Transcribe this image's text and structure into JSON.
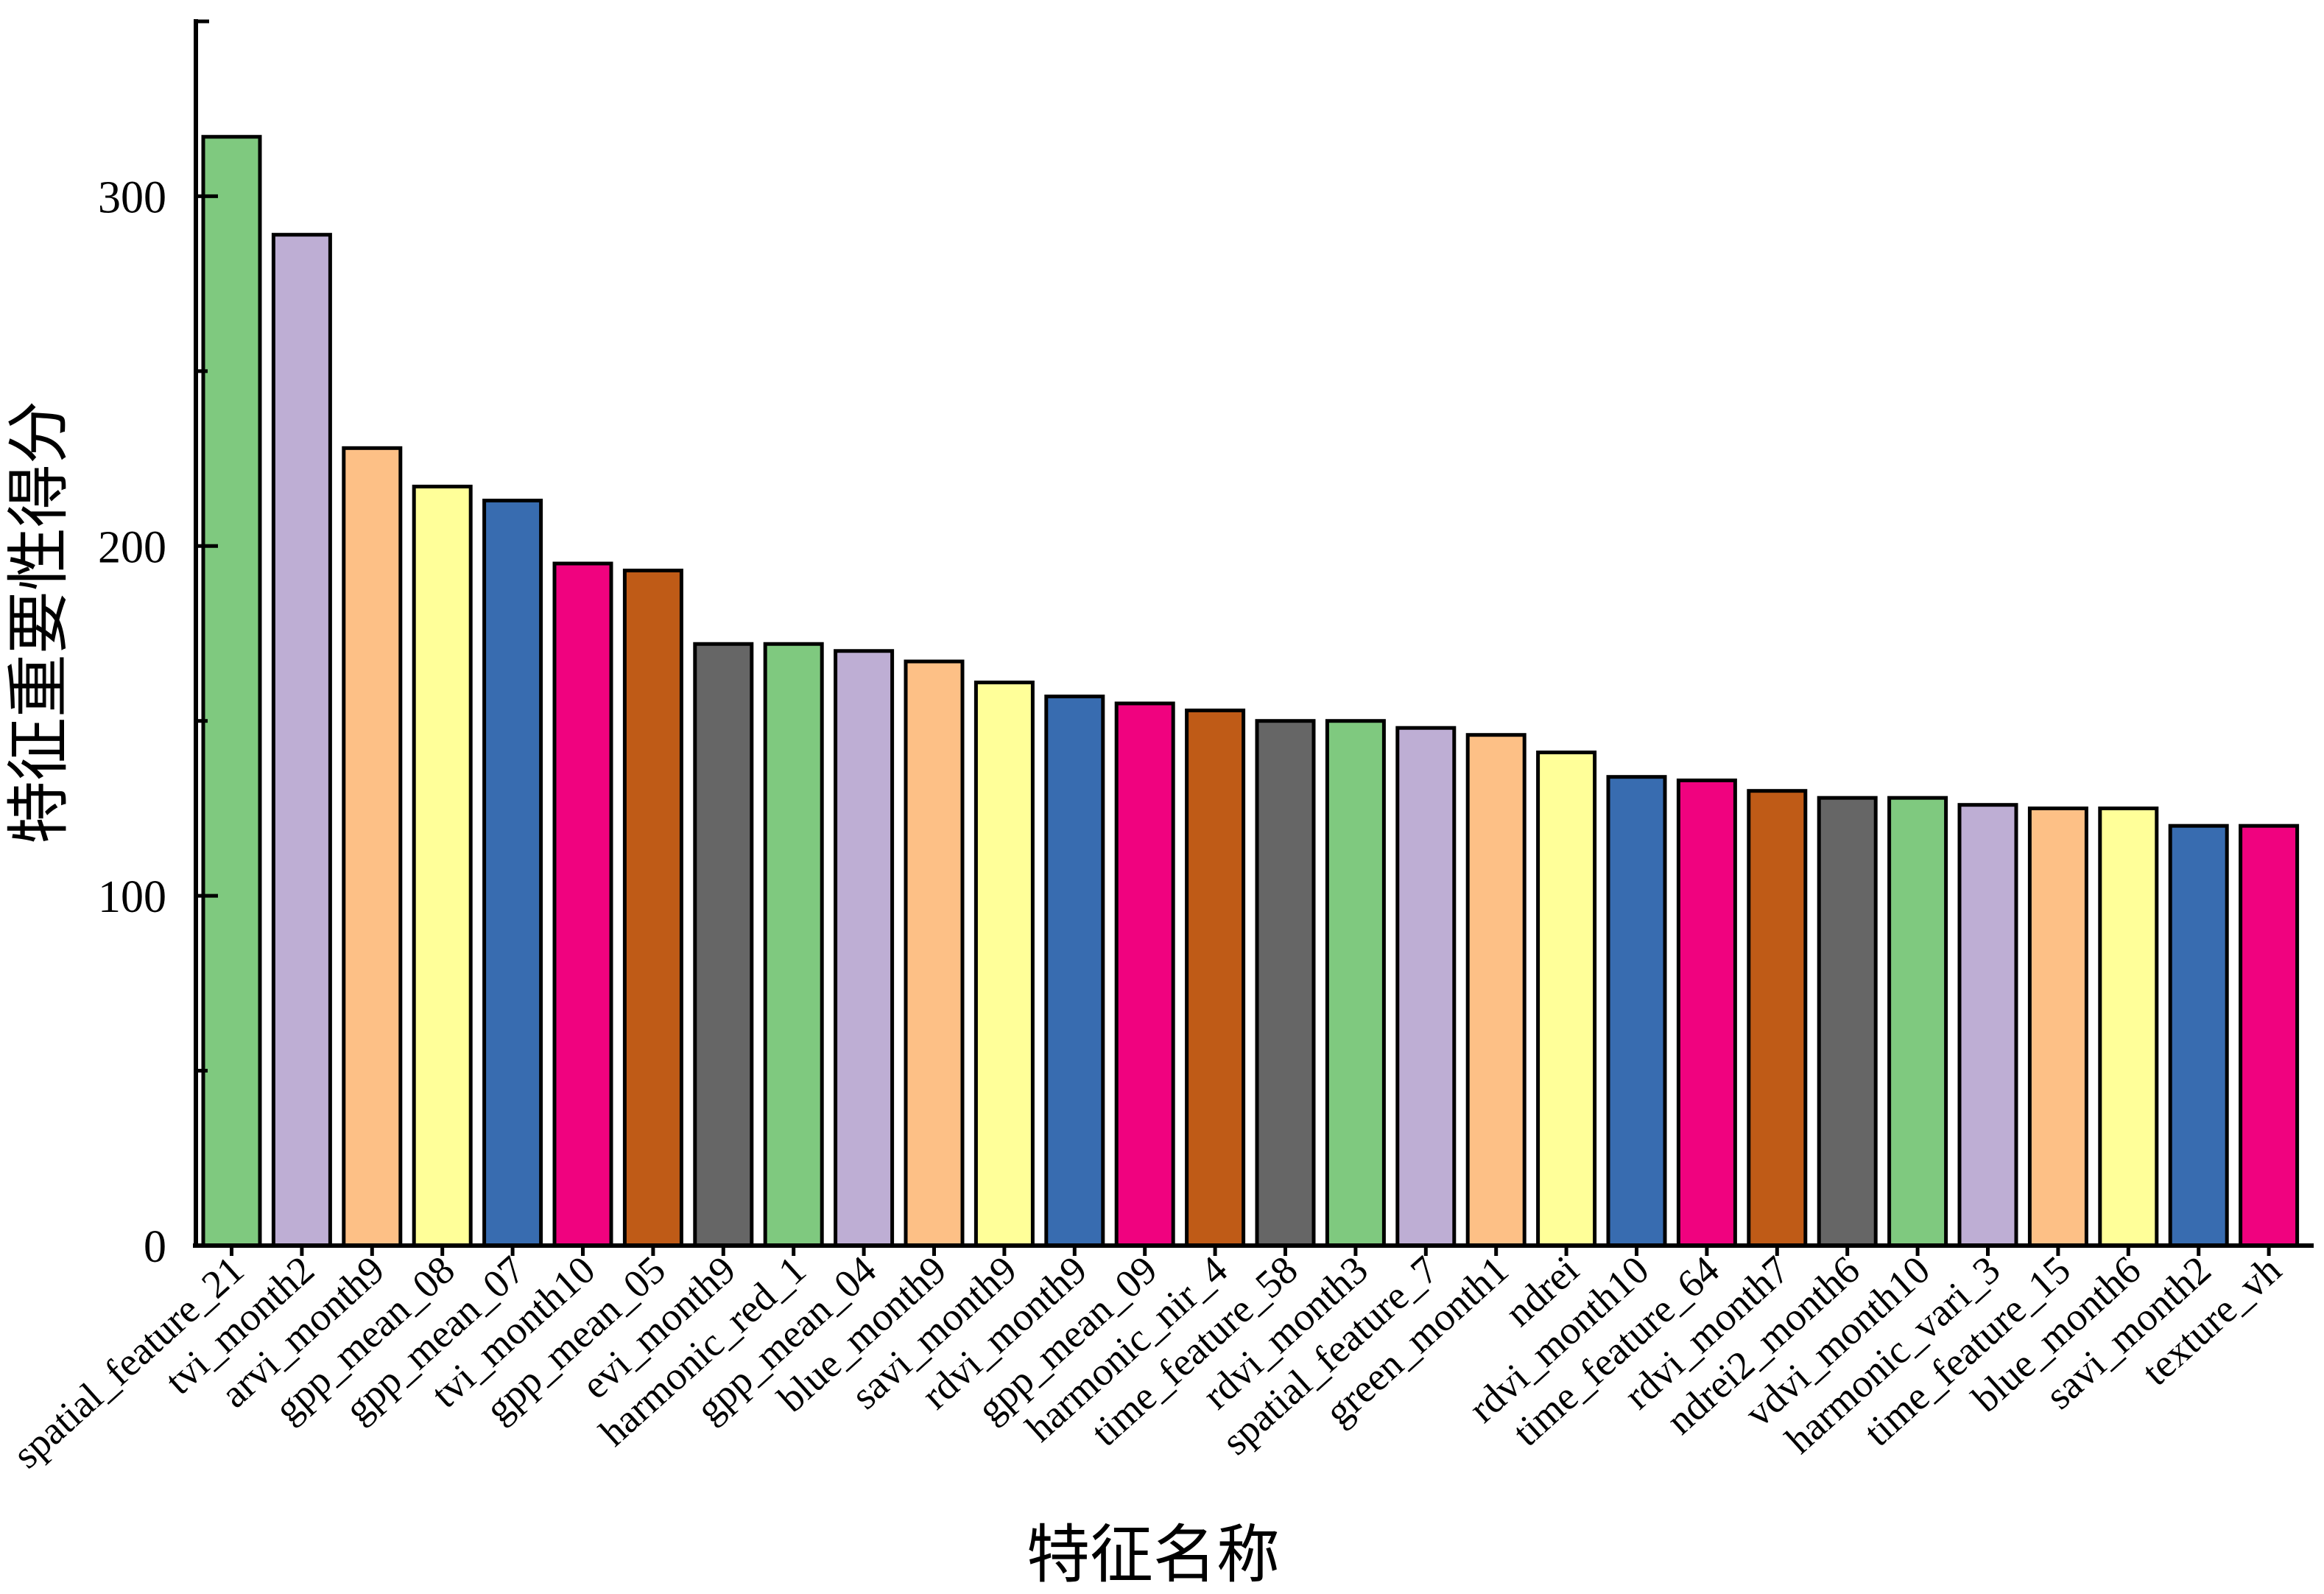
{
  "chart_data": {
    "type": "bar",
    "title": "",
    "xlabel": "特征名称",
    "ylabel": "特征重要性得分",
    "ylim": [
      0,
      350
    ],
    "yticks": [
      0,
      100,
      200,
      300
    ],
    "yticks_minor": [
      50,
      150,
      250
    ],
    "grid": false,
    "categories": [
      "spatial_feature_21",
      "tvi_month2",
      "arvi_month9",
      "gpp_mean_08",
      "gpp_mean_07",
      "tvi_month10",
      "gpp_mean_05",
      "evi_month9",
      "harmonic_red_1",
      "gpp_mean_04",
      "blue_month9",
      "savi_month9",
      "rdvi_month9",
      "gpp_mean_09",
      "harmonic_nir_4",
      "time_feature_58",
      "rdvi_month3",
      "spatial_feature_7",
      "green_month1",
      "ndrei",
      "rdvi_month10",
      "time_feature_64",
      "rdvi_month7",
      "ndrei2_month6",
      "vdvi_month10",
      "harmonic_vari_3",
      "time_feature_15",
      "blue_month6",
      "savi_month2",
      "texture_vh"
    ],
    "values": [
      317,
      289,
      228,
      217,
      213,
      195,
      193,
      172,
      172,
      170,
      167,
      161,
      157,
      155,
      153,
      150,
      150,
      148,
      146,
      141,
      134,
      133,
      130,
      128,
      128,
      126,
      125,
      125,
      120,
      120
    ],
    "colors": [
      "#7fc97f",
      "#beaed4",
      "#fdc086",
      "#ffff99",
      "#386cb0",
      "#f0027f",
      "#bf5b17",
      "#666666",
      "#7fc97f",
      "#beaed4",
      "#fdc086",
      "#ffff99",
      "#386cb0",
      "#f0027f",
      "#bf5b17",
      "#666666",
      "#7fc97f",
      "#beaed4",
      "#fdc086",
      "#ffff99",
      "#386cb0",
      "#f0027f",
      "#bf5b17",
      "#666666",
      "#7fc97f",
      "#beaed4",
      "#fdc086",
      "#ffff99",
      "#386cb0",
      "#f0027f"
    ]
  }
}
